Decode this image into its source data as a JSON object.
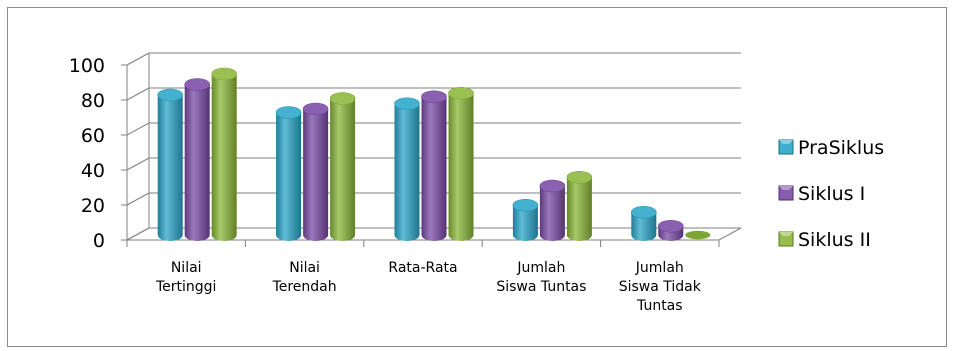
{
  "chart_data": {
    "type": "bar",
    "title": "",
    "xlabel": "",
    "ylabel": "",
    "ylim": [
      0,
      100
    ],
    "yticks": [
      0,
      20,
      40,
      60,
      80,
      100
    ],
    "grid": true,
    "legend_position": "right",
    "categories": [
      [
        "Nilai",
        "Tertinggi"
      ],
      [
        "Nilai",
        "Terendah"
      ],
      [
        "Rata-Rata"
      ],
      [
        "Jumlah",
        "Siswa Tuntas"
      ],
      [
        "Jumlah",
        "Siswa Tidak",
        "Tuntas"
      ]
    ],
    "series": [
      {
        "name": "PraSiklus",
        "color": "#2aa6c9",
        "values": [
          80,
          70,
          75,
          17,
          13
        ]
      },
      {
        "name": "Siklus I",
        "color": "#7a4aa6",
        "values": [
          86,
          72,
          79,
          28,
          5
        ]
      },
      {
        "name": "Siklus II",
        "color": "#8bb738",
        "values": [
          92,
          78,
          81,
          33,
          0
        ]
      }
    ]
  }
}
